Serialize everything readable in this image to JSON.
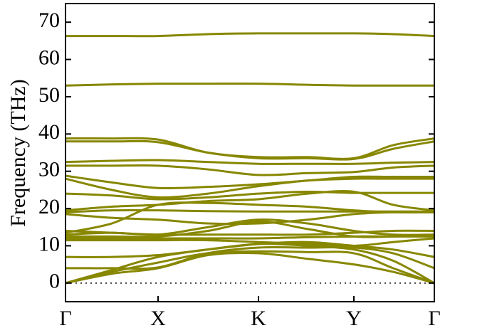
{
  "chart_data": {
    "type": "line",
    "y_label": "Frequency (THz)",
    "color": "#878700",
    "x": [
      0,
      0.65,
      1.3,
      2.0,
      2.71,
      3.4,
      4.05,
      4.6,
      5.18
    ],
    "xlim": [
      0,
      5.18
    ],
    "xticks": [
      {
        "value": 0,
        "label": "Γ"
      },
      {
        "value": 1.3,
        "label": "X"
      },
      {
        "value": 2.71,
        "label": "K"
      },
      {
        "value": 4.05,
        "label": "Y"
      },
      {
        "value": 5.18,
        "label": "Γ"
      }
    ],
    "ylim": [
      -5,
      75
    ],
    "yticks": [
      0,
      10,
      20,
      30,
      40,
      50,
      60,
      70
    ],
    "zero_line": 0,
    "series": [
      {
        "values": [
          66.3,
          66.3,
          66.3,
          66.8,
          67,
          67,
          67,
          66.8,
          66.3
        ]
      },
      {
        "values": [
          53,
          53.3,
          53.5,
          53.5,
          53.5,
          53.2,
          53,
          53,
          53
        ]
      },
      {
        "values": [
          38.8,
          38.8,
          38.5,
          35,
          33.8,
          33.8,
          33.5,
          37,
          38.8
        ]
      },
      {
        "values": [
          38,
          38,
          37.8,
          35,
          33.5,
          33.5,
          33.3,
          36,
          38
        ]
      },
      {
        "values": [
          32.5,
          32.8,
          33,
          32.5,
          32,
          32,
          32,
          32.3,
          32.5
        ]
      },
      {
        "values": [
          31.5,
          31.5,
          31.5,
          30.5,
          29,
          29.5,
          29.8,
          31,
          31.5
        ]
      },
      {
        "values": [
          28.8,
          27,
          25.5,
          25.8,
          26.5,
          27.5,
          28.5,
          28.5,
          28.5
        ]
      },
      {
        "values": [
          28,
          25,
          23,
          24,
          26,
          27.5,
          28,
          28,
          28
        ]
      },
      {
        "values": [
          24,
          23.5,
          22.5,
          23,
          24,
          24.5,
          24.2,
          24.2,
          24.2
        ]
      },
      {
        "values": [
          19.5,
          20.5,
          21,
          22,
          22.5,
          24,
          24.5,
          21,
          19.5
        ]
      },
      {
        "values": [
          19,
          19.5,
          19.5,
          19.3,
          19.2,
          19.2,
          19.2,
          19.2,
          19.2
        ]
      },
      {
        "values": [
          18.5,
          17.5,
          17,
          16,
          16,
          17,
          18.5,
          19,
          19
        ]
      },
      {
        "values": [
          13.5,
          16,
          21,
          21.5,
          21,
          20.5,
          19.5,
          19,
          19
        ]
      },
      {
        "values": [
          13,
          13.5,
          13,
          15,
          17,
          16,
          14,
          13,
          13
        ]
      },
      {
        "values": [
          12.5,
          12.5,
          12.5,
          14,
          16.5,
          14.5,
          12.5,
          12.5,
          13
        ]
      },
      {
        "values": [
          14,
          13.5,
          13,
          13,
          13,
          13,
          13.5,
          14,
          14
        ]
      },
      {
        "values": [
          12,
          12,
          12,
          12,
          12,
          12.3,
          12.5,
          12.5,
          12.5
        ]
      },
      {
        "values": [
          11.5,
          11.5,
          11.5,
          11.5,
          11,
          10.5,
          10,
          11,
          12
        ]
      },
      {
        "values": [
          7,
          7,
          7.5,
          9,
          10.5,
          11,
          10,
          9,
          7
        ]
      },
      {
        "values": [
          4,
          4,
          4.2,
          8,
          9.5,
          9.5,
          9.5,
          8,
          4
        ]
      },
      {
        "values": [
          0,
          3.5,
          7,
          9,
          10.5,
          10,
          9,
          6,
          0
        ]
      },
      {
        "values": [
          0,
          3,
          5.5,
          8,
          8.5,
          8.3,
          8,
          4,
          0
        ]
      },
      {
        "values": [
          0,
          2.5,
          4,
          7.5,
          8,
          6.5,
          5,
          3,
          0
        ]
      }
    ]
  }
}
